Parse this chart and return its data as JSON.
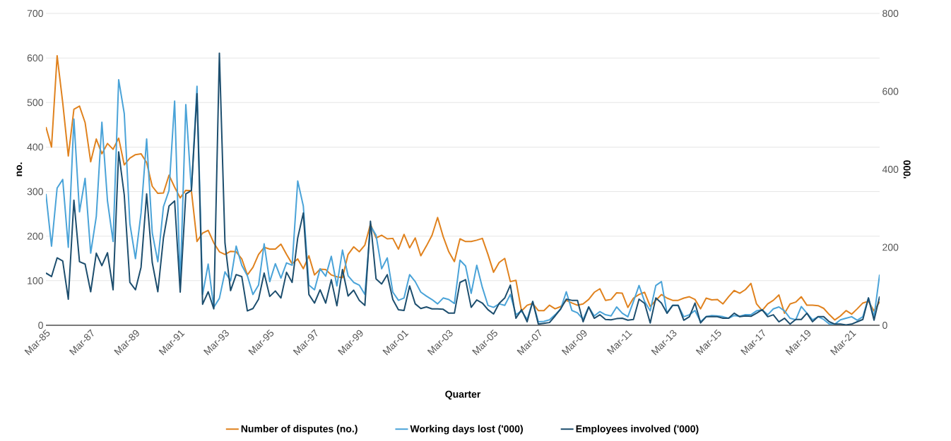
{
  "chart_data": {
    "type": "line",
    "xlabel": "Quarter",
    "ylabel": "no.",
    "y2label": "'000",
    "categories": [
      "Mar-85",
      null,
      null,
      null,
      null,
      null,
      null,
      null,
      "Mar-87",
      null,
      null,
      null,
      null,
      null,
      null,
      null,
      "Mar-89",
      null,
      null,
      null,
      null,
      null,
      null,
      null,
      "Mar-91",
      null,
      null,
      null,
      null,
      null,
      null,
      null,
      "Mar-93",
      null,
      null,
      null,
      null,
      null,
      null,
      null,
      "Mar-95",
      null,
      null,
      null,
      null,
      null,
      null,
      null,
      "Mar-97",
      null,
      null,
      null,
      null,
      null,
      null,
      null,
      "Mar-99",
      null,
      null,
      null,
      null,
      null,
      null,
      null,
      "Mar-01",
      null,
      null,
      null,
      null,
      null,
      null,
      null,
      "Mar-03",
      null,
      null,
      null,
      null,
      null,
      null,
      null,
      "Mar-05",
      null,
      null,
      null,
      null,
      null,
      null,
      null,
      "Mar-07",
      null,
      null,
      null,
      null,
      null,
      null,
      null,
      "Mar-09",
      null,
      null,
      null,
      null,
      null,
      null,
      null,
      "Mar-11",
      null,
      null,
      null,
      null,
      null,
      null,
      null,
      "Mar-13",
      null,
      null,
      null,
      null,
      null,
      null,
      null,
      "Mar-15",
      null,
      null,
      null,
      null,
      null,
      null,
      null,
      "Mar-17",
      null,
      null,
      null,
      null,
      null,
      null,
      null,
      "Mar-19",
      null,
      null,
      null,
      null,
      null,
      null,
      null,
      "Mar-21",
      null,
      null,
      null,
      null,
      null
    ],
    "series": [
      {
        "name": "Number of disputes (no.)",
        "color": "#e0821e",
        "values": [
          445,
          400,
          605,
          500,
          380,
          485,
          492,
          455,
          367,
          418,
          385,
          408,
          395,
          420,
          360,
          375,
          383,
          385,
          365,
          312,
          296,
          297,
          337,
          310,
          286,
          303,
          302,
          188,
          207,
          213,
          185,
          165,
          159,
          166,
          165,
          149,
          113,
          130,
          159,
          175,
          171,
          171,
          182,
          159,
          138,
          149,
          127,
          156,
          113,
          126,
          125,
          113,
          109,
          107,
          159,
          176,
          165,
          180,
          227,
          196,
          202,
          194,
          195,
          171,
          204,
          174,
          196,
          156,
          178,
          202,
          242,
          199,
          165,
          143,
          194,
          188,
          188,
          191,
          195,
          159,
          119,
          141,
          150,
          98,
          101,
          32,
          45,
          49,
          33,
          33,
          45,
          37,
          42,
          56,
          50,
          45,
          48,
          58,
          74,
          82,
          56,
          58,
          73,
          72,
          40,
          61,
          69,
          74,
          42,
          56,
          69,
          61,
          56,
          56,
          61,
          64,
          58,
          37,
          61,
          57,
          58,
          48,
          64,
          78,
          72,
          80,
          94,
          48,
          33,
          48,
          56,
          68,
          27,
          48,
          52,
          64,
          45,
          45,
          44,
          38,
          24,
          12,
          21,
          33,
          25,
          37,
          50,
          54,
          32,
          53
        ]
      },
      {
        "name": "Working days lost ('000)",
        "color": "#4aa3d8",
        "axis": "y2",
        "values": [
          337,
          203,
          352,
          374,
          200,
          529,
          291,
          377,
          185,
          279,
          521,
          319,
          215,
          630,
          543,
          261,
          171,
          288,
          478,
          237,
          163,
          304,
          346,
          575,
          103,
          566,
          346,
          613,
          79,
          157,
          46,
          69,
          137,
          114,
          203,
          154,
          127,
          79,
          103,
          209,
          112,
          158,
          121,
          160,
          154,
          370,
          306,
          103,
          91,
          145,
          126,
          177,
          101,
          193,
          127,
          110,
          103,
          79,
          255,
          231,
          145,
          173,
          85,
          64,
          70,
          130,
          112,
          85,
          75,
          66,
          55,
          70,
          66,
          56,
          167,
          152,
          82,
          154,
          97,
          51,
          46,
          55,
          51,
          79,
          27,
          37,
          15,
          61,
          9,
          10,
          14,
          27,
          42,
          86,
          38,
          32,
          15,
          47,
          24,
          35,
          27,
          24,
          47,
          31,
          22,
          61,
          102,
          61,
          37,
          102,
          112,
          31,
          51,
          51,
          22,
          27,
          38,
          9,
          22,
          25,
          24,
          22,
          18,
          25,
          23,
          27,
          27,
          37,
          40,
          27,
          42,
          47,
          37,
          18,
          14,
          48,
          31,
          14,
          22,
          15,
          3,
          3,
          14,
          18,
          22,
          13,
          22,
          70,
          22,
          130
        ]
      },
      {
        "name": "Employees involved ('000)",
        "color": "#1d4e6e",
        "axis": "y2",
        "values": [
          134,
          125,
          173,
          165,
          67,
          321,
          163,
          157,
          86,
          185,
          153,
          186,
          91,
          445,
          334,
          110,
          91,
          149,
          337,
          161,
          86,
          224,
          306,
          319,
          85,
          337,
          346,
          594,
          54,
          86,
          42,
          698,
          211,
          89,
          130,
          125,
          37,
          43,
          67,
          134,
          74,
          88,
          70,
          136,
          110,
          224,
          288,
          79,
          57,
          91,
          57,
          117,
          50,
          143,
          75,
          90,
          64,
          51,
          267,
          119,
          106,
          130,
          66,
          40,
          38,
          101,
          55,
          43,
          47,
          42,
          42,
          41,
          31,
          31,
          110,
          117,
          46,
          65,
          57,
          40,
          29,
          56,
          70,
          103,
          18,
          40,
          9,
          61,
          3,
          5,
          7,
          24,
          42,
          67,
          64,
          64,
          9,
          47,
          18,
          27,
          15,
          14,
          17,
          18,
          13,
          15,
          67,
          56,
          6,
          70,
          57,
          31,
          51,
          51,
          13,
          22,
          57,
          6,
          22,
          22,
          22,
          18,
          18,
          31,
          22,
          24,
          23,
          31,
          40,
          22,
          27,
          9,
          18,
          3,
          15,
          15,
          31,
          9,
          22,
          22,
          9,
          3,
          3,
          1,
          3,
          9,
          15,
          70,
          13,
          74
        ]
      }
    ],
    "ylim": [
      0,
      700
    ],
    "yticks": [
      0,
      100,
      200,
      300,
      400,
      500,
      600,
      700
    ],
    "y2lim": [
      0,
      800
    ],
    "y2ticks": [
      0,
      200,
      400,
      600,
      800
    ],
    "grid": "y",
    "legend": "bottom"
  }
}
